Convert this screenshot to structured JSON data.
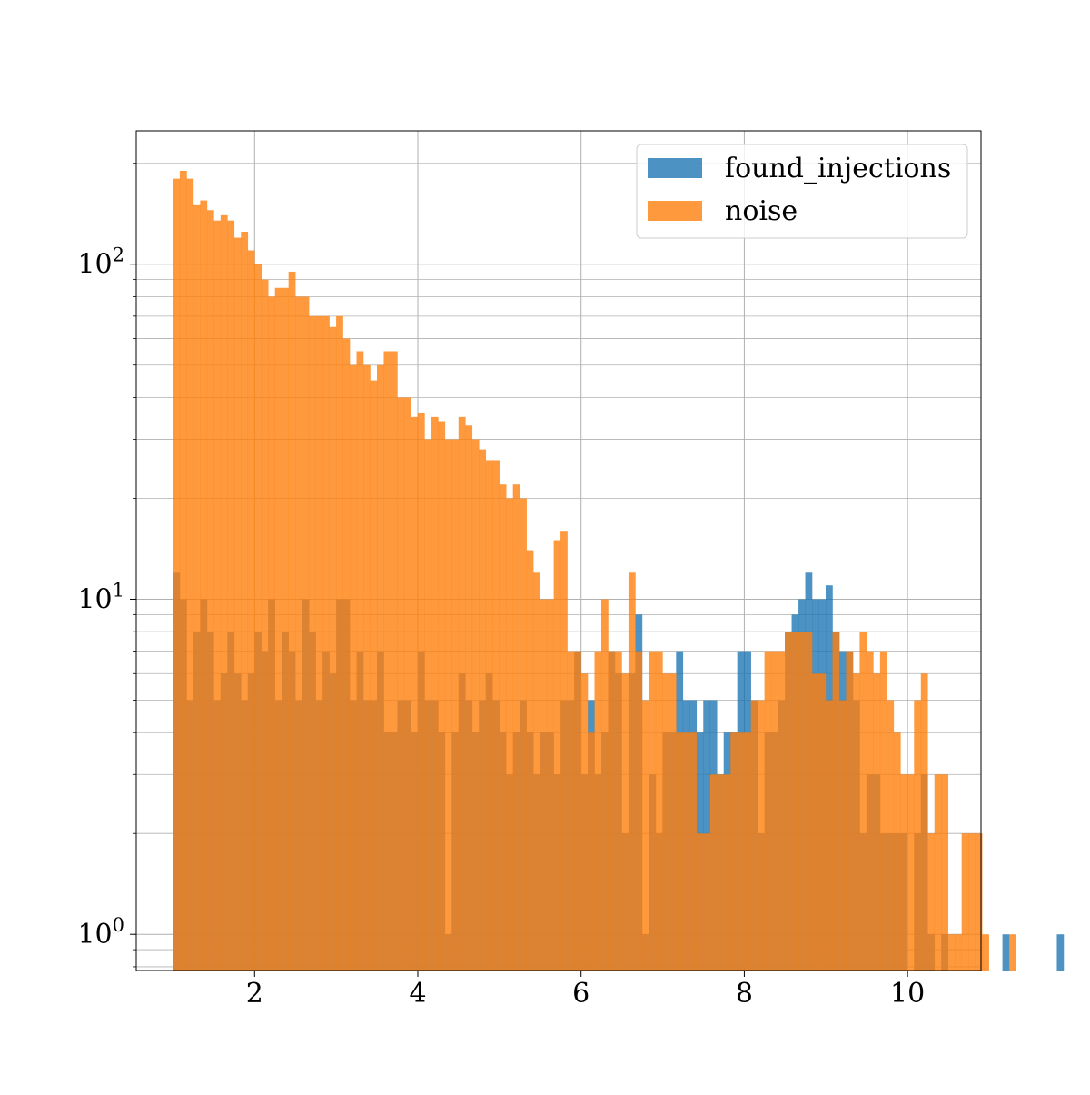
{
  "chart_data": {
    "type": "histogram",
    "title": "",
    "xlabel": "",
    "ylabel": "",
    "xlim": [
      0.55,
      10.9
    ],
    "ylim": [
      0.78,
      250
    ],
    "yscale": "log",
    "grid": true,
    "legend_position": "top-right",
    "x_ticks": [
      2,
      4,
      6,
      8,
      10
    ],
    "x_tick_labels": [
      "2",
      "4",
      "6",
      "8",
      "10"
    ],
    "y_ticks": [
      1,
      10,
      100
    ],
    "y_tick_bases": [
      "10",
      "10",
      "10"
    ],
    "y_tick_exponents": [
      "0",
      "1",
      "2"
    ],
    "series": [
      {
        "name": "found_injections",
        "color": "#1f77b4",
        "opacity": 0.8,
        "bin_start": 1.0,
        "bin_width": 0.0833,
        "values": [
          12,
          10,
          5,
          8,
          10,
          8,
          5,
          6,
          8,
          6,
          5,
          6,
          8,
          7,
          10,
          5,
          8,
          7,
          5,
          10,
          8,
          5,
          7,
          6,
          10,
          10,
          5,
          7,
          5,
          5,
          7,
          4,
          4,
          5,
          5,
          4,
          7,
          5,
          5,
          4,
          1,
          4,
          6,
          5,
          4,
          5,
          6,
          5,
          4,
          3,
          4,
          5,
          4,
          3,
          4,
          4,
          3,
          5,
          5,
          7,
          3,
          5,
          3,
          4,
          7,
          6,
          2,
          6,
          9,
          1,
          3,
          2,
          4,
          4,
          7,
          5,
          5,
          4,
          5,
          5,
          3,
          4,
          4,
          7,
          7,
          5,
          2,
          4,
          4,
          5,
          8,
          9,
          10,
          12,
          10,
          10,
          11,
          8,
          7,
          7,
          5,
          2,
          3,
          3,
          2,
          2,
          2,
          2,
          0,
          2,
          3,
          1,
          0,
          1,
          0,
          0,
          0,
          0,
          0,
          0,
          0,
          0,
          1,
          0,
          0,
          0,
          0,
          0,
          0,
          0,
          1
        ]
      },
      {
        "name": "noise",
        "color": "#ff7f0e",
        "opacity": 0.8,
        "bin_start": 1.0,
        "bin_width": 0.0833,
        "values": [
          180,
          190,
          180,
          150,
          155,
          145,
          135,
          140,
          135,
          120,
          125,
          110,
          100,
          90,
          80,
          85,
          85,
          95,
          80,
          80,
          70,
          70,
          70,
          65,
          70,
          60,
          50,
          55,
          50,
          45,
          50,
          55,
          55,
          40,
          40,
          35,
          36,
          30,
          35,
          34,
          30,
          30,
          35,
          33,
          30,
          28,
          26,
          26,
          22,
          20,
          22,
          20,
          14,
          12,
          10,
          10,
          15,
          16,
          7,
          7,
          6,
          4,
          7,
          10,
          7,
          7,
          6,
          12,
          7,
          5,
          7,
          7,
          6,
          6,
          4,
          4,
          4,
          2,
          2,
          3,
          3,
          3,
          4,
          4,
          4,
          5,
          5,
          7,
          7,
          7,
          8,
          8,
          8,
          8,
          6,
          6,
          5,
          8,
          5,
          7,
          6,
          8,
          7,
          6,
          7,
          5,
          4,
          3,
          3,
          5,
          6,
          2,
          3,
          3,
          1,
          1,
          2,
          2,
          2,
          1,
          0,
          0,
          0,
          1,
          0,
          0,
          0,
          0,
          0,
          0,
          0
        ]
      }
    ]
  }
}
